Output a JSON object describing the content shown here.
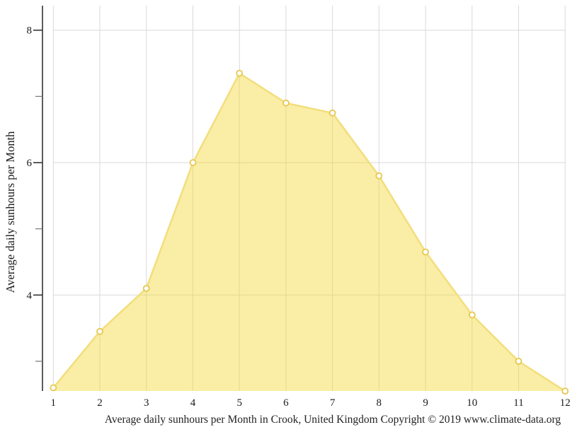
{
  "chart_data": {
    "type": "area",
    "x": [
      1,
      2,
      3,
      4,
      5,
      6,
      7,
      8,
      9,
      10,
      11,
      12
    ],
    "x_tick_labels": [
      "1",
      "2",
      "3",
      "4",
      "5",
      "6",
      "7",
      "8",
      "9",
      "10",
      "11",
      "12"
    ],
    "values": [
      2.6,
      3.45,
      4.1,
      6.0,
      7.35,
      6.9,
      6.75,
      5.8,
      4.65,
      3.7,
      3.0,
      2.55
    ],
    "title": "",
    "xlabel": "",
    "ylabel": "Average daily sunhours per Month",
    "caption": "Average daily sunhours per Month in Crook, United Kingdom Copyright © 2019 www.climate-data.org",
    "y_major_ticks": [
      4,
      6,
      8
    ],
    "y_major_tick_labels": [
      "4",
      "6",
      "8"
    ],
    "y_minor_ticks": [
      3,
      5,
      7
    ],
    "ylim": [
      2.55,
      8.37
    ],
    "grid": true,
    "legend": "none",
    "colors": {
      "area_fill": "rgba(244,215,56,0.45)",
      "line": "#f2de7d",
      "marker_fill": "#ffffff",
      "marker_stroke": "#e6c84e",
      "gridline": "#d9d9d9",
      "axis": "#333333",
      "minor_tick": "#777777",
      "text": "#1a1a1a"
    }
  }
}
